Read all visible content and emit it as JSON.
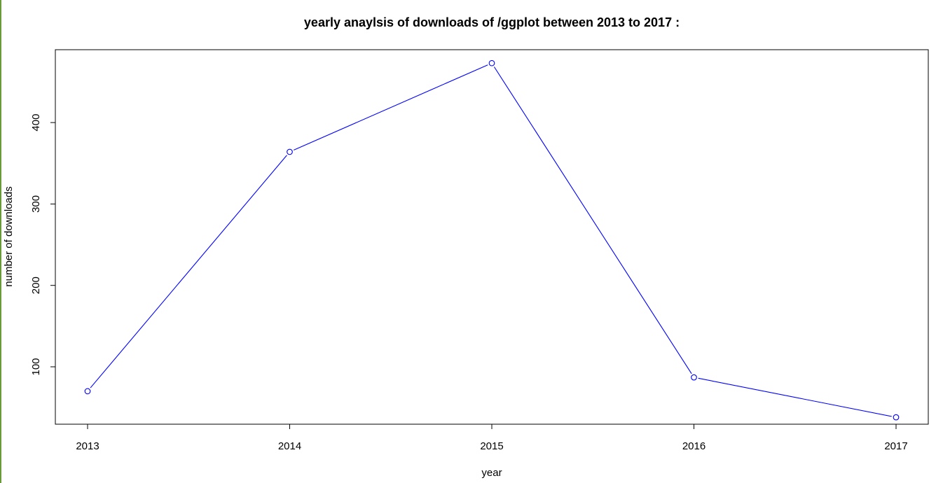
{
  "chart_data": {
    "type": "line",
    "title": "yearly anaylsis of downloads of /ggplot between 2013 to 2017 :",
    "xlabel": "year",
    "ylabel": "number of downloads",
    "x": [
      2013,
      2014,
      2015,
      2016,
      2017
    ],
    "series": [
      {
        "values": [
          70,
          364,
          473,
          87,
          38
        ]
      }
    ],
    "x_ticks": [
      "2013",
      "2014",
      "2015",
      "2016",
      "2017"
    ],
    "y_ticks": [
      "100",
      "200",
      "300",
      "400"
    ],
    "ylim": [
      29.5,
      489.5
    ],
    "grid": false,
    "markers": "open-circle",
    "colors": {
      "line": "#0000ff",
      "axis": "#000000"
    }
  }
}
